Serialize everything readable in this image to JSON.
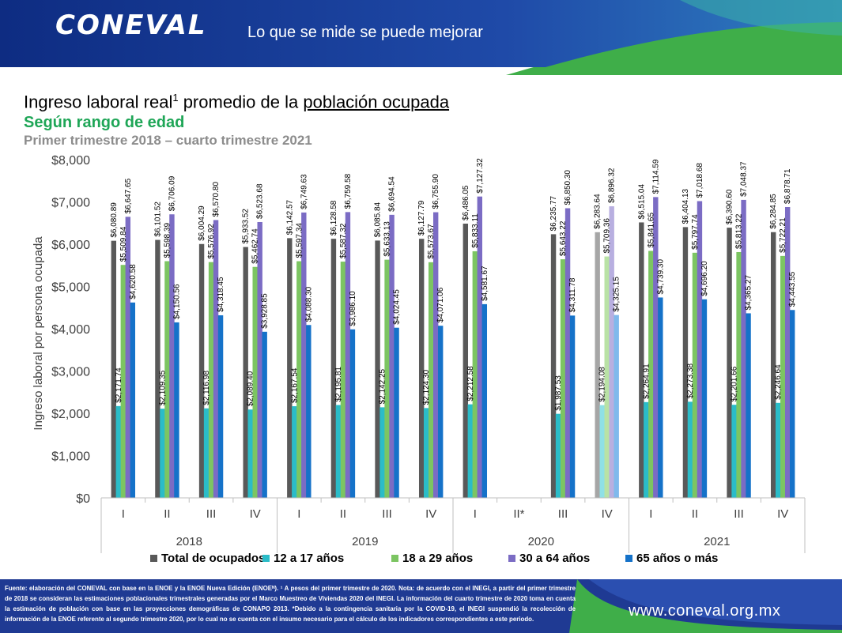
{
  "header": {
    "logo_text": "CONEVAL",
    "slogan": "Lo que se mide se puede mejorar"
  },
  "title": {
    "prefix": "Ingreso laboral real",
    "superscript": "1",
    "middle": " promedio de la ",
    "underlined": "población ocupada",
    "subtitle": "Según rango de edad",
    "period": "Primer trimestre 2018 – cuarto trimestre 2021"
  },
  "chart_data": {
    "type": "bar",
    "ylabel": "Ingreso laboral por persona ocupada",
    "ylim": [
      0,
      8000
    ],
    "yticks": [
      0,
      1000,
      2000,
      3000,
      4000,
      5000,
      6000,
      7000,
      8000
    ],
    "ytick_labels": [
      "$0",
      "$1,000",
      "$2,000",
      "$3,000",
      "$4,000",
      "$5,000",
      "$6,000",
      "$7,000",
      "$8,000"
    ],
    "grid": false,
    "legend_position": "bottom",
    "categories": [
      "I",
      "II",
      "III",
      "IV",
      "I",
      "II",
      "III",
      "IV",
      "I",
      "II*",
      "III",
      "IV",
      "I",
      "II",
      "III",
      "IV"
    ],
    "years": [
      {
        "label": "2018",
        "span": [
          0,
          3
        ]
      },
      {
        "label": "2019",
        "span": [
          4,
          7
        ]
      },
      {
        "label": "2020",
        "span": [
          8,
          11
        ]
      },
      {
        "label": "2021",
        "span": [
          12,
          15
        ]
      }
    ],
    "highlight_category_index": 11,
    "series": [
      {
        "name": "Total de ocupados",
        "color": "#595959",
        "light_color": "#a6a6a6",
        "values": [
          6080.89,
          6101.52,
          6004.29,
          5933.52,
          6142.57,
          6128.58,
          6085.84,
          6127.79,
          6486.05,
          null,
          6235.77,
          6283.64,
          6515.04,
          6404.13,
          6390.6,
          6284.85
        ],
        "labels": [
          "$6,080.89",
          "$6,101.52",
          "$6,004.29",
          "$5,933.52",
          "$6,142.57",
          "$6,128.58",
          "$6,085.84",
          "$6,127.79",
          "$6,486.05",
          null,
          "$6,235.77",
          "$6,283.64",
          "$6,515.04",
          "$6,404.13",
          "$6,390.60",
          "$6,284.85"
        ]
      },
      {
        "name": "12 a 17 años",
        "color": "#2bbcc8",
        "light_color": "#8fe0e6",
        "values": [
          2171.74,
          2109.35,
          2116.98,
          2089.4,
          2167.54,
          2195.81,
          2142.25,
          2124.3,
          2212.58,
          null,
          1987.53,
          2194.08,
          2264.91,
          2273.38,
          2201.66,
          2246.64
        ],
        "labels": [
          "$2,171.74",
          "$2,109.35",
          "$2,116.98",
          "$2,089.40",
          "$2,167.54",
          "$2,195.81",
          "$2,142.25",
          "$2,124.30",
          "$2,212.58",
          null,
          "$1,987.53",
          "$2,194.08",
          "$2,264.91",
          "$2,273.38",
          "$2,201.66",
          "$2,246.64"
        ]
      },
      {
        "name": "18 a 29 años",
        "color": "#7cc562",
        "light_color": "#b9e2a5",
        "values": [
          5509.84,
          5598.39,
          5576.92,
          5462.74,
          5597.34,
          5587.32,
          5633.13,
          5573.67,
          5833.11,
          null,
          5643.22,
          5709.36,
          5841.65,
          5797.74,
          5813.22,
          5722.21
        ],
        "labels": [
          "$5,509.84",
          "$5,598.39",
          "$5,576.92",
          "$5,462.74",
          "$5,597.34",
          "$5,587.32",
          "$5,633.13",
          "$5,573.67",
          "$5,833.11",
          null,
          "$5,643.22",
          "$5,709.36",
          "$5,841.65",
          "$5,797.74",
          "$5,813.22",
          "$5,722.21"
        ]
      },
      {
        "name": "30 a 64 años",
        "color": "#7b6cc4",
        "light_color": "#b8afe0",
        "values": [
          6647.65,
          6706.09,
          6570.8,
          6523.68,
          6749.63,
          6759.58,
          6694.54,
          6755.9,
          7127.32,
          null,
          6850.3,
          6896.32,
          7114.59,
          7018.68,
          7048.37,
          6878.71
        ],
        "labels": [
          "$6,647.65",
          "$6,706.09",
          "$6,570.80",
          "$6,523.68",
          "$6,749.63",
          "$6,759.58",
          "$6,694.54",
          "$6,755.90",
          "$7,127.32",
          null,
          "$6,850.30",
          "$6,896.32",
          "$7,114.59",
          "$7,018.68",
          "$7,048.37",
          "$6,878.71"
        ]
      },
      {
        "name": "65 años o más",
        "color": "#1572c9",
        "light_color": "#7fb9ec",
        "values": [
          4620.58,
          4150.56,
          4318.45,
          3928.85,
          4088.3,
          3986.1,
          4024.45,
          4071.06,
          4581.67,
          null,
          4311.78,
          4325.15,
          4739.3,
          4696.2,
          4365.27,
          4443.55
        ],
        "labels": [
          "$4,620.58",
          "$4,150.56",
          "$4,318.45",
          "$3,928.85",
          "$4,088.30",
          "$3,986.10",
          "$4,024.45",
          "$4,071.06",
          "$4,581.67",
          null,
          "$4,311.78",
          "$4,325.15",
          "$4,739.30",
          "$4,696.20",
          "$4,365.27",
          "$4,443.55"
        ]
      }
    ]
  },
  "footer": {
    "source_note": "Fuente: elaboración del CONEVAL con base en la ENOE y la ENOE Nueva Edición (ENOEᴺ). ¹ A pesos del primer trimestre de 2020. Nota: de acuerdo con el INEGI, a partir del primer trimestre de 2018 se consideran las estimaciones poblacionales trimestrales generadas por el Marco Muestreo de Viviendas 2020 del INEGI. La información del cuarto trimestre de 2020 toma en cuenta la estimación de población con base en las proyecciones demográficas de CONAPO 2013. *Debido a la contingencia sanitaria por la COVID-19, el INEGI suspendió la recolección de información de la ENOE referente al segundo trimestre 2020, por lo cual no se cuenta con el insumo necesario para el cálculo de los indicadores correspondientes a este periodo.",
    "url": "www.coneval.org.mx"
  },
  "colors": {
    "header_blue": "#1f3a93",
    "header_green": "#3fae49",
    "footer_blue": "#1f3a93"
  }
}
